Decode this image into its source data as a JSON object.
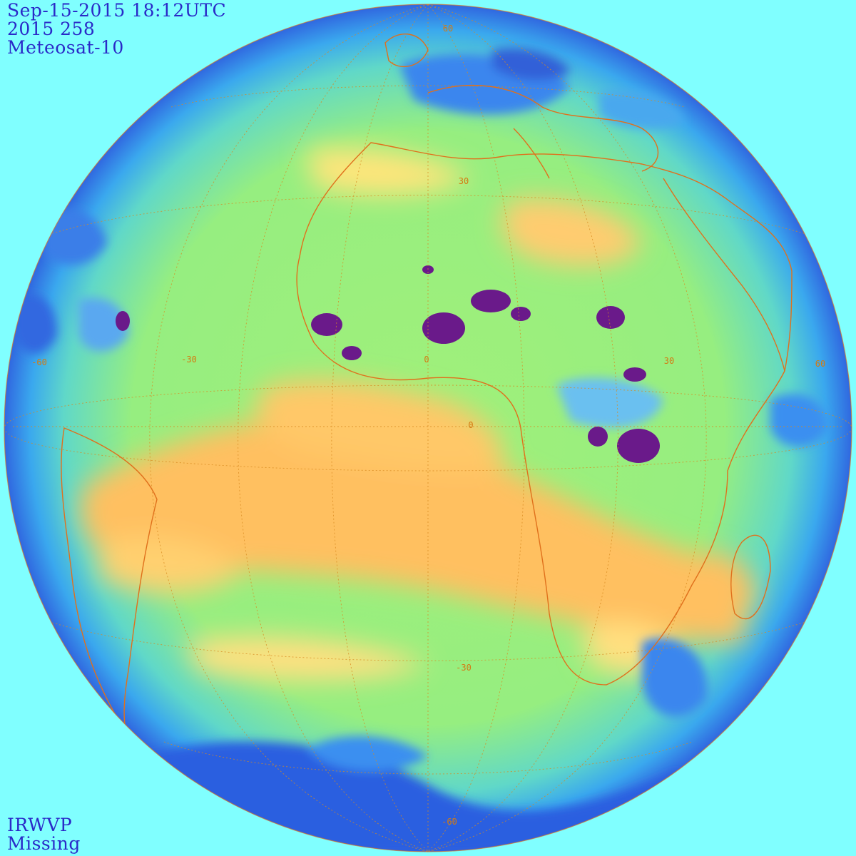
{
  "header": {
    "datetime": "Sep-15-2015 18:12UTC",
    "julian": "2015 258",
    "satellite": "Meteosat-10"
  },
  "footer": {
    "product": "IRWVP",
    "status": "Missing"
  },
  "grid_labels": {
    "lat_n60": "60",
    "lat_n30": "30",
    "lat_0": "0",
    "lat_s30": "-30",
    "lat_s60": "-60",
    "lon_w60": "-60",
    "lon_w30": "-30",
    "lon_0": "0",
    "lon_e30": "30",
    "lon_e60": "60"
  },
  "colors": {
    "background": "#80ffff",
    "header_text": "#2a2ac8",
    "coastline": "#e0701c",
    "graticule": "#d88a20",
    "moist_blue": "#2a78e0",
    "deep_convection": "#6a1a8a",
    "dry_orange": "#ffc060",
    "mid_green": "#8cf07a"
  }
}
